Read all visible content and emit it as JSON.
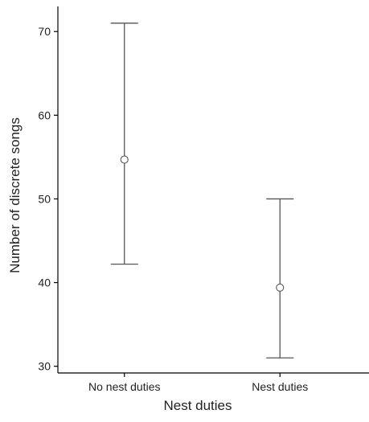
{
  "chart_data": {
    "type": "errorbar",
    "title": "",
    "xlabel": "Nest duties",
    "ylabel": "Number of discrete songs",
    "categories": [
      "No nest duties",
      "Nest duties"
    ],
    "series": [
      {
        "values": [
          54.7,
          39.4
        ],
        "lower": [
          42.2,
          31.0
        ],
        "upper": [
          71.0,
          50.0
        ]
      }
    ],
    "ylim": [
      29.2,
      73.0
    ],
    "yticks": [
      30,
      40,
      50,
      60,
      70
    ],
    "grid": false,
    "legend": "none",
    "colors": {
      "axis": "#000000",
      "mark": "#555555",
      "text": "#222222"
    }
  }
}
